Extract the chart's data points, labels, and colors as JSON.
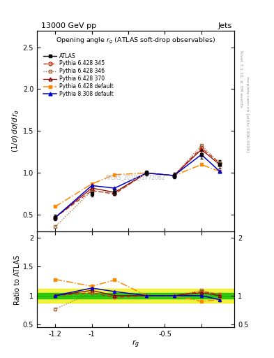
{
  "title_top": "13000 GeV pp",
  "title_right": "Jets",
  "plot_title": "Opening angle $r_g$ (ATLAS soft-drop observables)",
  "watermark": "ATLAS_2019_I1772062",
  "right_label_top": "Rivet 3.1.10, ≥ 3M events",
  "right_label_bot": "mcplots.cern.ch [arXiv:1306.3436]",
  "ylabel_main": "$(1/\\sigma)\\, d\\sigma/d\\, r_g$",
  "ylabel_ratio": "Ratio to ATLAS",
  "xlabel": "$r_g$",
  "x_values": [
    -1.2,
    -1.0,
    -0.875,
    -0.7,
    -0.55,
    -0.4,
    -0.3
  ],
  "atlas_y": [
    0.47,
    0.75,
    0.77,
    1.0,
    0.97,
    1.22,
    1.1
  ],
  "atlas_err": [
    0.03,
    0.03,
    0.03,
    0.03,
    0.03,
    0.05,
    0.05
  ],
  "p6_345_y": [
    0.47,
    0.79,
    0.75,
    1.0,
    0.97,
    1.3,
    1.12
  ],
  "p6_346_y": [
    0.36,
    0.79,
    0.76,
    1.0,
    0.97,
    1.33,
    1.12
  ],
  "p6_370_y": [
    0.47,
    0.82,
    0.77,
    1.0,
    0.97,
    1.28,
    1.1
  ],
  "p6_def_y": [
    0.6,
    0.87,
    0.98,
    1.0,
    0.97,
    1.1,
    1.02
  ],
  "p8_def_y": [
    0.47,
    0.85,
    0.82,
    1.0,
    0.97,
    1.22,
    1.02
  ],
  "ratio_p6_345": [
    1.0,
    1.05,
    0.97,
    1.0,
    1.0,
    1.07,
    1.02
  ],
  "ratio_p6_346": [
    0.77,
    1.05,
    0.99,
    1.0,
    1.0,
    1.09,
    1.02
  ],
  "ratio_p6_370": [
    1.0,
    1.09,
    1.0,
    1.0,
    1.0,
    1.05,
    1.0
  ],
  "ratio_p6_def": [
    1.28,
    1.16,
    1.27,
    1.0,
    1.0,
    0.9,
    0.93
  ],
  "ratio_p8_def": [
    1.0,
    1.13,
    1.07,
    1.0,
    1.0,
    1.0,
    0.93
  ],
  "color_atlas": "#000000",
  "color_p6_345": "#cc2200",
  "color_p6_346": "#996633",
  "color_p6_370": "#880000",
  "color_p6_def": "#ff8800",
  "color_p8_def": "#0000cc",
  "band_green": "#00bb00",
  "band_yellow": "#eeee00",
  "xlim": [
    -1.3,
    -0.22
  ],
  "ylim_main": [
    0.3,
    2.7
  ],
  "ylim_ratio": [
    0.45,
    2.1
  ]
}
